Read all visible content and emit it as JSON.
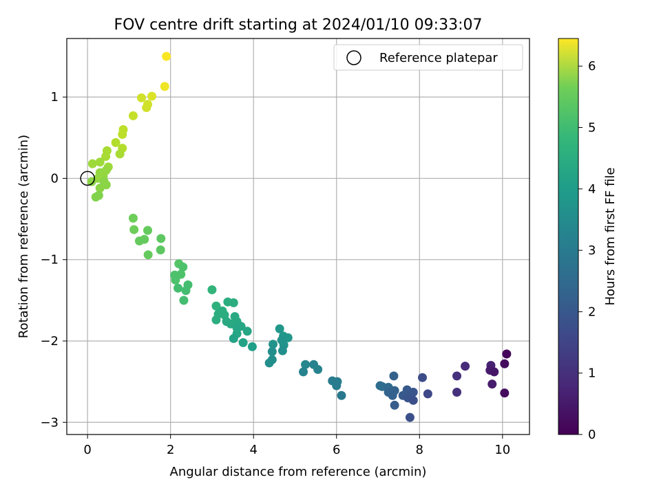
{
  "chart_data": {
    "type": "scatter",
    "title": "FOV centre drift starting at 2024/01/10 09:33:07",
    "xlabel": "Angular distance from reference (arcmin)",
    "ylabel": "Rotation from reference (arcmin)",
    "xlim": [
      -0.5,
      10.65
    ],
    "ylim": [
      -3.15,
      1.72
    ],
    "xticks": [
      0,
      2,
      4,
      6,
      8,
      10
    ],
    "xtick_labels": [
      "0",
      "2",
      "4",
      "6",
      "8",
      "10"
    ],
    "yticks": [
      -3,
      -2,
      -1,
      0,
      1
    ],
    "ytick_labels": [
      "−3",
      "−2",
      "−1",
      "0",
      "1"
    ],
    "grid": true,
    "legend": {
      "position": "top-right",
      "entries": [
        "Reference platepar"
      ]
    },
    "colormap": "viridis",
    "colorbar": {
      "label": "Hours from first FF file",
      "range": [
        0,
        6.45
      ],
      "ticks": [
        0,
        1,
        2,
        3,
        4,
        5,
        6
      ],
      "tick_labels": [
        "0",
        "1",
        "2",
        "3",
        "4",
        "5",
        "6"
      ]
    },
    "reference_point": {
      "x": 0,
      "y": 0
    },
    "series": [
      {
        "points": [
          {
            "x": 1.9,
            "y": 1.5,
            "c": 6.4
          },
          {
            "x": 1.86,
            "y": 1.13,
            "c": 6.3
          },
          {
            "x": 1.3,
            "y": 0.99,
            "c": 6.0
          },
          {
            "x": 1.55,
            "y": 1.01,
            "c": 6.1
          },
          {
            "x": 1.45,
            "y": 0.91,
            "c": 6.0
          },
          {
            "x": 1.42,
            "y": 0.87,
            "c": 6.0
          },
          {
            "x": 1.1,
            "y": 0.77,
            "c": 5.9
          },
          {
            "x": 0.86,
            "y": 0.6,
            "c": 5.8
          },
          {
            "x": 0.84,
            "y": 0.54,
            "c": 5.8
          },
          {
            "x": 0.68,
            "y": 0.44,
            "c": 5.7
          },
          {
            "x": 0.84,
            "y": 0.37,
            "c": 5.7
          },
          {
            "x": 0.78,
            "y": 0.3,
            "c": 5.6
          },
          {
            "x": 0.47,
            "y": 0.34,
            "c": 5.6
          },
          {
            "x": 0.44,
            "y": 0.27,
            "c": 5.6
          },
          {
            "x": 0.12,
            "y": 0.18,
            "c": 5.5
          },
          {
            "x": 0.3,
            "y": 0.2,
            "c": 5.5
          },
          {
            "x": 0.5,
            "y": 0.14,
            "c": 5.5
          },
          {
            "x": 0.45,
            "y": 0.1,
            "c": 5.4
          },
          {
            "x": 0.3,
            "y": 0.07,
            "c": 5.4
          },
          {
            "x": 0.38,
            "y": 0.03,
            "c": 5.4
          },
          {
            "x": 0.25,
            "y": 0.0,
            "c": 5.4
          },
          {
            "x": 0.4,
            "y": -0.04,
            "c": 5.3
          },
          {
            "x": 0.1,
            "y": -0.04,
            "c": 5.3
          },
          {
            "x": 0.45,
            "y": -0.08,
            "c": 5.3
          },
          {
            "x": 0.3,
            "y": -0.12,
            "c": 5.3
          },
          {
            "x": 0.27,
            "y": -0.21,
            "c": 5.2
          },
          {
            "x": 0.2,
            "y": -0.23,
            "c": 5.2
          },
          {
            "x": 1.1,
            "y": -0.49,
            "c": 5.0
          },
          {
            "x": 1.12,
            "y": -0.63,
            "c": 5.0
          },
          {
            "x": 1.45,
            "y": -0.64,
            "c": 4.9
          },
          {
            "x": 1.37,
            "y": -0.75,
            "c": 4.9
          },
          {
            "x": 1.25,
            "y": -0.77,
            "c": 4.9
          },
          {
            "x": 1.77,
            "y": -0.74,
            "c": 4.8
          },
          {
            "x": 1.76,
            "y": -0.88,
            "c": 4.8
          },
          {
            "x": 1.46,
            "y": -0.94,
            "c": 4.9
          },
          {
            "x": 2.2,
            "y": -1.05,
            "c": 4.7
          },
          {
            "x": 2.3,
            "y": -1.09,
            "c": 4.6
          },
          {
            "x": 2.1,
            "y": -1.19,
            "c": 4.6
          },
          {
            "x": 2.25,
            "y": -1.18,
            "c": 4.6
          },
          {
            "x": 2.12,
            "y": -1.25,
            "c": 4.6
          },
          {
            "x": 2.18,
            "y": -1.35,
            "c": 4.5
          },
          {
            "x": 2.42,
            "y": -1.31,
            "c": 4.5
          },
          {
            "x": 2.37,
            "y": -1.38,
            "c": 4.5
          },
          {
            "x": 2.32,
            "y": -1.5,
            "c": 4.5
          },
          {
            "x": 3.0,
            "y": -1.37,
            "c": 4.2
          },
          {
            "x": 3.1,
            "y": -1.57,
            "c": 4.1
          },
          {
            "x": 3.38,
            "y": -1.52,
            "c": 4.0
          },
          {
            "x": 3.52,
            "y": -1.53,
            "c": 4.0
          },
          {
            "x": 3.25,
            "y": -1.63,
            "c": 4.0
          },
          {
            "x": 3.15,
            "y": -1.67,
            "c": 4.0
          },
          {
            "x": 3.3,
            "y": -1.68,
            "c": 4.0
          },
          {
            "x": 3.55,
            "y": -1.7,
            "c": 3.9
          },
          {
            "x": 3.1,
            "y": -1.74,
            "c": 4.0
          },
          {
            "x": 3.35,
            "y": -1.76,
            "c": 3.9
          },
          {
            "x": 3.6,
            "y": -1.76,
            "c": 3.9
          },
          {
            "x": 3.45,
            "y": -1.79,
            "c": 3.9
          },
          {
            "x": 3.7,
            "y": -1.82,
            "c": 3.8
          },
          {
            "x": 3.6,
            "y": -1.84,
            "c": 3.8
          },
          {
            "x": 3.85,
            "y": -1.88,
            "c": 3.8
          },
          {
            "x": 3.6,
            "y": -1.91,
            "c": 3.8
          },
          {
            "x": 3.52,
            "y": -1.97,
            "c": 3.7
          },
          {
            "x": 3.75,
            "y": -2.02,
            "c": 3.7
          },
          {
            "x": 3.97,
            "y": -2.07,
            "c": 3.6
          },
          {
            "x": 4.63,
            "y": -1.85,
            "c": 3.4
          },
          {
            "x": 4.72,
            "y": -1.94,
            "c": 3.4
          },
          {
            "x": 4.83,
            "y": -1.96,
            "c": 3.4
          },
          {
            "x": 4.68,
            "y": -1.99,
            "c": 3.3
          },
          {
            "x": 4.47,
            "y": -2.04,
            "c": 3.3
          },
          {
            "x": 4.73,
            "y": -2.05,
            "c": 3.3
          },
          {
            "x": 4.7,
            "y": -2.12,
            "c": 3.2
          },
          {
            "x": 4.45,
            "y": -2.13,
            "c": 3.2
          },
          {
            "x": 4.45,
            "y": -2.23,
            "c": 3.2
          },
          {
            "x": 4.38,
            "y": -2.27,
            "c": 3.2
          },
          {
            "x": 5.25,
            "y": -2.29,
            "c": 3.0
          },
          {
            "x": 5.45,
            "y": -2.29,
            "c": 2.9
          },
          {
            "x": 5.55,
            "y": -2.35,
            "c": 2.9
          },
          {
            "x": 5.2,
            "y": -2.38,
            "c": 2.9
          },
          {
            "x": 5.9,
            "y": -2.49,
            "c": 2.7
          },
          {
            "x": 6.02,
            "y": -2.5,
            "c": 2.7
          },
          {
            "x": 6.0,
            "y": -2.55,
            "c": 2.7
          },
          {
            "x": 6.12,
            "y": -2.67,
            "c": 2.6
          },
          {
            "x": 7.05,
            "y": -2.55,
            "c": 2.3
          },
          {
            "x": 7.1,
            "y": -2.56,
            "c": 2.3
          },
          {
            "x": 7.25,
            "y": -2.57,
            "c": 2.2
          },
          {
            "x": 7.38,
            "y": -2.43,
            "c": 2.0
          },
          {
            "x": 7.25,
            "y": -2.63,
            "c": 2.1
          },
          {
            "x": 7.35,
            "y": -2.67,
            "c": 2.0
          },
          {
            "x": 7.4,
            "y": -2.61,
            "c": 2.0
          },
          {
            "x": 7.4,
            "y": -2.79,
            "c": 1.9
          },
          {
            "x": 7.6,
            "y": -2.67,
            "c": 1.8
          },
          {
            "x": 7.7,
            "y": -2.6,
            "c": 1.8
          },
          {
            "x": 7.72,
            "y": -2.7,
            "c": 1.7
          },
          {
            "x": 7.85,
            "y": -2.63,
            "c": 1.7
          },
          {
            "x": 7.85,
            "y": -2.73,
            "c": 1.6
          },
          {
            "x": 7.77,
            "y": -2.94,
            "c": 1.6
          },
          {
            "x": 8.07,
            "y": -2.45,
            "c": 1.5
          },
          {
            "x": 8.2,
            "y": -2.65,
            "c": 1.4
          },
          {
            "x": 8.9,
            "y": -2.43,
            "c": 0.9
          },
          {
            "x": 8.9,
            "y": -2.63,
            "c": 0.9
          },
          {
            "x": 9.1,
            "y": -2.31,
            "c": 0.8
          },
          {
            "x": 9.72,
            "y": -2.3,
            "c": 0.6
          },
          {
            "x": 9.7,
            "y": -2.36,
            "c": 0.5
          },
          {
            "x": 9.8,
            "y": -2.38,
            "c": 0.4
          },
          {
            "x": 9.75,
            "y": -2.53,
            "c": 0.5
          },
          {
            "x": 10.1,
            "y": -2.16,
            "c": 0.1
          },
          {
            "x": 10.05,
            "y": -2.28,
            "c": 0.2
          },
          {
            "x": 10.05,
            "y": -2.64,
            "c": 0.2
          }
        ]
      }
    ]
  }
}
